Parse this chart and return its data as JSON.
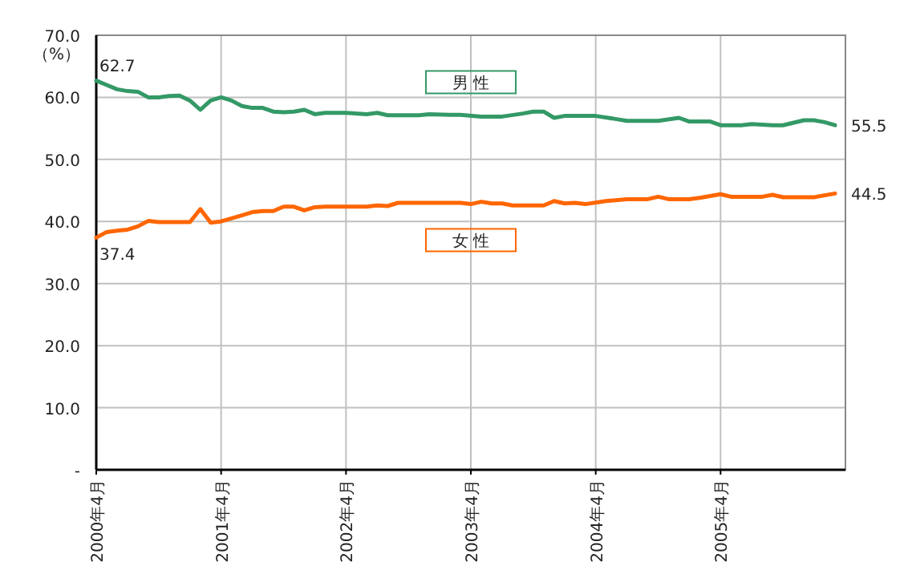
{
  "chart_data": {
    "type": "line",
    "ylabel": "（%）",
    "xlim": [
      "2000-04",
      "2006-04"
    ],
    "xticks": [
      {
        "value": "2000-04",
        "label": "2000年4月"
      },
      {
        "value": "2001-04",
        "label": "2001年4月"
      },
      {
        "value": "2002-04",
        "label": "2002年4月"
      },
      {
        "value": "2003-04",
        "label": "2003年4月"
      },
      {
        "value": "2004-04",
        "label": "2004年4月"
      },
      {
        "value": "2005-04",
        "label": "2005年4月"
      }
    ],
    "ylim": [
      0,
      70
    ],
    "yticks": [
      {
        "value": 0,
        "label": "-"
      },
      {
        "value": 10,
        "label": "10.0"
      },
      {
        "value": 20,
        "label": "20.0"
      },
      {
        "value": 30,
        "label": "30.0"
      },
      {
        "value": 40,
        "label": "40.0"
      },
      {
        "value": 50,
        "label": "50.0"
      },
      {
        "value": 60,
        "label": "60.0"
      },
      {
        "value": 70,
        "label": "70.0"
      }
    ],
    "grid": true,
    "marker": "none",
    "line_style": "solid",
    "series": [
      {
        "name": "男 性",
        "color": "#339966",
        "x": [
          "2000-04",
          "2000-05",
          "2000-06",
          "2000-07",
          "2000-08",
          "2000-09",
          "2000-10",
          "2000-11",
          "2000-12",
          "2001-01",
          "2001-02",
          "2001-03",
          "2001-04",
          "2001-05",
          "2001-06",
          "2001-07",
          "2001-08",
          "2001-09",
          "2001-10",
          "2001-11",
          "2001-12",
          "2002-01",
          "2002-02",
          "2002-04",
          "2002-06",
          "2002-07",
          "2002-08",
          "2002-11",
          "2002-12",
          "2003-02",
          "2003-03",
          "2003-05",
          "2003-07",
          "2003-09",
          "2003-10",
          "2003-11",
          "2003-12",
          "2004-01",
          "2004-04",
          "2004-06",
          "2004-07",
          "2004-10",
          "2004-12",
          "2005-01",
          "2005-03",
          "2005-04",
          "2005-06",
          "2005-07",
          "2005-09",
          "2005-10",
          "2005-12",
          "2006-01",
          "2006-02",
          "2006-03"
        ],
        "values": [
          62.7,
          62.0,
          61.3,
          61.0,
          60.9,
          60.0,
          60.0,
          60.2,
          60.3,
          59.5,
          58.0,
          59.5,
          60.0,
          59.5,
          58.6,
          58.3,
          58.3,
          57.7,
          57.6,
          57.7,
          58.0,
          57.3,
          57.5,
          57.5,
          57.3,
          57.5,
          57.1,
          57.1,
          57.3,
          57.2,
          57.2,
          56.9,
          56.9,
          57.4,
          57.7,
          57.7,
          56.7,
          57.0,
          57.0,
          56.5,
          56.2,
          56.2,
          56.7,
          56.1,
          56.1,
          55.5,
          55.5,
          55.7,
          55.5,
          55.5,
          56.3,
          56.3,
          56.0,
          55.5
        ]
      },
      {
        "name": "女 性",
        "color": "#ff6600",
        "x": [
          "2000-04",
          "2000-05",
          "2000-06",
          "2000-07",
          "2000-08",
          "2000-09",
          "2000-10",
          "2001-01",
          "2001-02",
          "2001-03",
          "2001-04",
          "2001-05",
          "2001-06",
          "2001-07",
          "2001-08",
          "2001-09",
          "2001-10",
          "2001-11",
          "2001-12",
          "2002-01",
          "2002-02",
          "2002-06",
          "2002-07",
          "2002-08",
          "2002-09",
          "2003-03",
          "2003-04",
          "2003-05",
          "2003-06",
          "2003-07",
          "2003-08",
          "2003-11",
          "2003-12",
          "2004-01",
          "2004-02",
          "2004-03",
          "2004-05",
          "2004-07",
          "2004-09",
          "2004-10",
          "2004-11",
          "2005-01",
          "2005-02",
          "2005-04",
          "2005-05",
          "2005-08",
          "2005-09",
          "2005-10",
          "2006-01",
          "2006-03"
        ],
        "values": [
          37.4,
          38.3,
          38.5,
          38.7,
          39.2,
          40.1,
          39.9,
          39.9,
          42.0,
          39.8,
          40.0,
          40.5,
          41.0,
          41.5,
          41.7,
          41.7,
          42.4,
          42.4,
          41.8,
          42.3,
          42.4,
          42.4,
          42.6,
          42.5,
          43.0,
          43.0,
          42.8,
          43.2,
          42.9,
          42.9,
          42.6,
          42.6,
          43.3,
          42.9,
          43.0,
          42.8,
          43.3,
          43.6,
          43.6,
          44.0,
          43.6,
          43.6,
          43.8,
          44.4,
          44.0,
          44.0,
          44.3,
          43.9,
          43.9,
          44.5
        ]
      }
    ],
    "annotations": [
      {
        "text": "62.7",
        "x": "2000-04",
        "y": 62.7
      },
      {
        "text": "37.4",
        "x": "2000-04",
        "y": 37.4
      },
      {
        "text": "55.5",
        "x": "2006-03",
        "y": 55.5
      },
      {
        "text": "44.5",
        "x": "2006-03",
        "y": 44.5
      }
    ]
  }
}
